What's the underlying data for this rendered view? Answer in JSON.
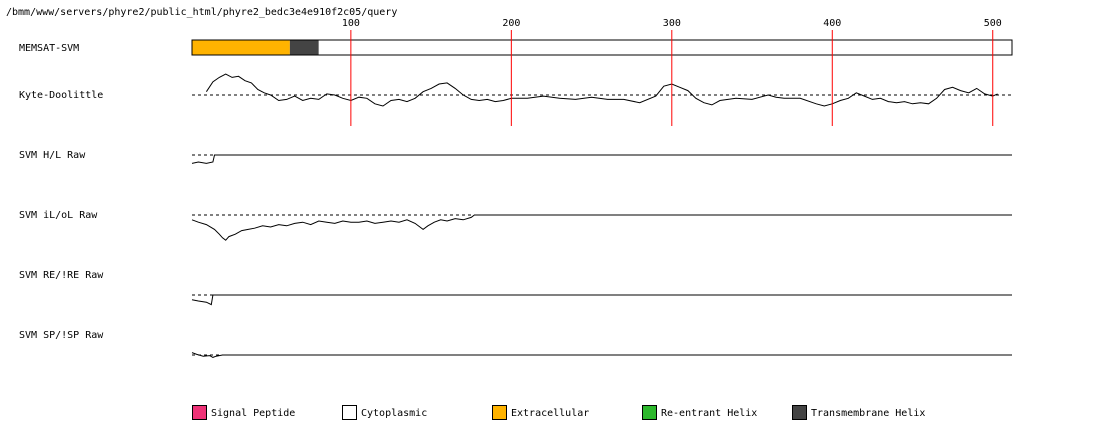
{
  "header": {
    "path": "/bmm/www/servers/phyre2/public_html/phyre2_bedc3e4e910f2c05/query"
  },
  "colors": {
    "signal_peptide": "#ee3377",
    "cytoplasmic": "#ffffff",
    "extracellular": "#ffb300",
    "reentrant_helix": "#2db82d",
    "transmembrane_helix": "#444444",
    "marker": "#ff0000"
  },
  "chart_data": {
    "type": "line",
    "x_range": [
      1,
      512
    ],
    "x_ticks": [
      100,
      200,
      300,
      400,
      500
    ],
    "tracks": [
      {
        "name": "MEMSAT-SVM",
        "kind": "topology",
        "segments": [
          {
            "start": 1,
            "end": 61,
            "type": "extracellular"
          },
          {
            "start": 62,
            "end": 79,
            "type": "transmembrane_helix"
          },
          {
            "start": 80,
            "end": 512,
            "type": "cytoplasmic"
          }
        ]
      },
      {
        "name": "Kyte-Doolittle",
        "kind": "profile",
        "points": [
          [
            10,
            0.3
          ],
          [
            14,
            1.2
          ],
          [
            18,
            1.6
          ],
          [
            22,
            1.9
          ],
          [
            26,
            1.6
          ],
          [
            30,
            1.7
          ],
          [
            34,
            1.3
          ],
          [
            38,
            1.1
          ],
          [
            42,
            0.5
          ],
          [
            46,
            0.2
          ],
          [
            50,
            0.0
          ],
          [
            55,
            -0.5
          ],
          [
            60,
            -0.4
          ],
          [
            65,
            -0.1
          ],
          [
            70,
            -0.5
          ],
          [
            75,
            -0.3
          ],
          [
            80,
            -0.4
          ],
          [
            85,
            0.1
          ],
          [
            90,
            0.0
          ],
          [
            95,
            -0.3
          ],
          [
            100,
            -0.5
          ],
          [
            105,
            -0.2
          ],
          [
            110,
            -0.3
          ],
          [
            115,
            -0.8
          ],
          [
            120,
            -1.0
          ],
          [
            125,
            -0.5
          ],
          [
            130,
            -0.4
          ],
          [
            135,
            -0.6
          ],
          [
            140,
            -0.3
          ],
          [
            145,
            0.3
          ],
          [
            150,
            0.6
          ],
          [
            155,
            1.0
          ],
          [
            160,
            1.1
          ],
          [
            165,
            0.6
          ],
          [
            170,
            0.0
          ],
          [
            175,
            -0.4
          ],
          [
            180,
            -0.5
          ],
          [
            185,
            -0.4
          ],
          [
            190,
            -0.6
          ],
          [
            195,
            -0.5
          ],
          [
            200,
            -0.3
          ],
          [
            210,
            -0.3
          ],
          [
            220,
            -0.1
          ],
          [
            230,
            -0.3
          ],
          [
            240,
            -0.4
          ],
          [
            250,
            -0.2
          ],
          [
            260,
            -0.4
          ],
          [
            270,
            -0.4
          ],
          [
            280,
            -0.7
          ],
          [
            290,
            -0.1
          ],
          [
            295,
            0.8
          ],
          [
            300,
            1.0
          ],
          [
            305,
            0.7
          ],
          [
            310,
            0.4
          ],
          [
            315,
            -0.3
          ],
          [
            320,
            -0.7
          ],
          [
            325,
            -0.9
          ],
          [
            330,
            -0.5
          ],
          [
            340,
            -0.3
          ],
          [
            350,
            -0.4
          ],
          [
            360,
            0.0
          ],
          [
            365,
            -0.2
          ],
          [
            370,
            -0.3
          ],
          [
            380,
            -0.3
          ],
          [
            390,
            -0.8
          ],
          [
            395,
            -1.0
          ],
          [
            400,
            -0.8
          ],
          [
            405,
            -0.5
          ],
          [
            410,
            -0.3
          ],
          [
            415,
            0.2
          ],
          [
            420,
            -0.1
          ],
          [
            425,
            -0.4
          ],
          [
            430,
            -0.3
          ],
          [
            435,
            -0.6
          ],
          [
            440,
            -0.7
          ],
          [
            445,
            -0.6
          ],
          [
            450,
            -0.8
          ],
          [
            455,
            -0.7
          ],
          [
            460,
            -0.8
          ],
          [
            465,
            -0.3
          ],
          [
            470,
            0.5
          ],
          [
            475,
            0.7
          ],
          [
            480,
            0.4
          ],
          [
            485,
            0.2
          ],
          [
            490,
            0.6
          ],
          [
            495,
            0.1
          ],
          [
            500,
            -0.1
          ],
          [
            503,
            0.1
          ]
        ]
      },
      {
        "name": "SVM H/L Raw",
        "kind": "profile",
        "points": [
          [
            1,
            -0.6
          ],
          [
            5,
            -0.5
          ],
          [
            10,
            -0.6
          ],
          [
            14,
            -0.5
          ],
          [
            15,
            0.0
          ],
          [
            512,
            0.0
          ]
        ]
      },
      {
        "name": "SVM iL/oL Raw",
        "kind": "profile",
        "points": [
          [
            1,
            -0.4
          ],
          [
            5,
            -0.6
          ],
          [
            10,
            -0.8
          ],
          [
            15,
            -1.2
          ],
          [
            18,
            -1.6
          ],
          [
            20,
            -1.9
          ],
          [
            22,
            -2.1
          ],
          [
            24,
            -1.8
          ],
          [
            28,
            -1.6
          ],
          [
            32,
            -1.3
          ],
          [
            36,
            -1.2
          ],
          [
            40,
            -1.1
          ],
          [
            45,
            -0.9
          ],
          [
            50,
            -1.0
          ],
          [
            55,
            -0.8
          ],
          [
            60,
            -0.9
          ],
          [
            65,
            -0.7
          ],
          [
            70,
            -0.6
          ],
          [
            75,
            -0.8
          ],
          [
            80,
            -0.5
          ],
          [
            85,
            -0.6
          ],
          [
            90,
            -0.7
          ],
          [
            95,
            -0.5
          ],
          [
            100,
            -0.6
          ],
          [
            105,
            -0.6
          ],
          [
            110,
            -0.5
          ],
          [
            115,
            -0.7
          ],
          [
            120,
            -0.6
          ],
          [
            125,
            -0.5
          ],
          [
            130,
            -0.6
          ],
          [
            135,
            -0.4
          ],
          [
            140,
            -0.7
          ],
          [
            145,
            -1.2
          ],
          [
            148,
            -0.9
          ],
          [
            152,
            -0.6
          ],
          [
            156,
            -0.4
          ],
          [
            160,
            -0.5
          ],
          [
            165,
            -0.3
          ],
          [
            170,
            -0.4
          ],
          [
            175,
            -0.2
          ],
          [
            177,
            0.0
          ],
          [
            512,
            0.0
          ]
        ]
      },
      {
        "name": "SVM RE/!RE Raw",
        "kind": "profile",
        "points": [
          [
            1,
            -0.4
          ],
          [
            5,
            -0.5
          ],
          [
            10,
            -0.6
          ],
          [
            13,
            -0.8
          ],
          [
            14,
            0.0
          ],
          [
            512,
            0.0
          ]
        ]
      },
      {
        "name": "SVM SP/!SP Raw",
        "kind": "profile",
        "points": [
          [
            1,
            0.4
          ],
          [
            4,
            0.1
          ],
          [
            8,
            -0.2
          ],
          [
            12,
            -0.1
          ],
          [
            14,
            -0.4
          ],
          [
            16,
            -0.2
          ],
          [
            20,
            0.0
          ],
          [
            512,
            0.0
          ]
        ]
      }
    ]
  },
  "legend": [
    {
      "label": "Signal Peptide",
      "color_key": "signal_peptide"
    },
    {
      "label": "Cytoplasmic",
      "color_key": "cytoplasmic"
    },
    {
      "label": "Extracellular",
      "color_key": "extracellular"
    },
    {
      "label": "Re-entrant Helix",
      "color_key": "reentrant_helix"
    },
    {
      "label": "Transmembrane Helix",
      "color_key": "transmembrane_helix"
    }
  ]
}
